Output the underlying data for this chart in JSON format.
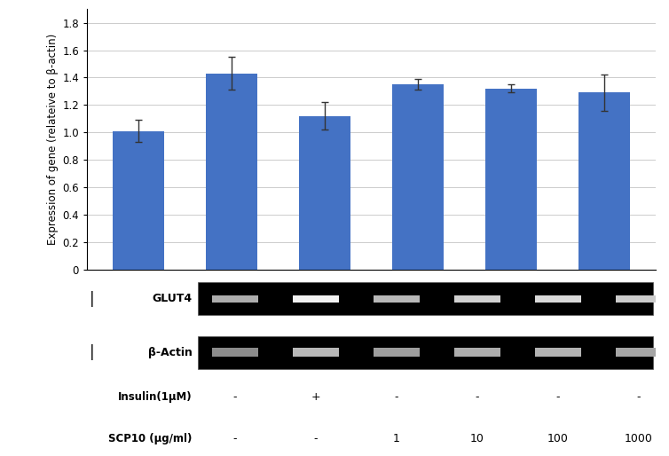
{
  "bar_values": [
    1.01,
    1.43,
    1.12,
    1.35,
    1.32,
    1.29
  ],
  "bar_errors": [
    0.08,
    0.12,
    0.1,
    0.04,
    0.03,
    0.13
  ],
  "bar_color": "#4472C4",
  "bar_width": 0.55,
  "ylim": [
    0,
    1.9
  ],
  "yticks": [
    0,
    0.2,
    0.4,
    0.6,
    0.8,
    1.0,
    1.2,
    1.4,
    1.6,
    1.8
  ],
  "ylabel": "Expression of gene (relateive to β-actin)",
  "xlabel_rows": [
    [
      "Insulin(1μM)",
      "-",
      "+",
      "-",
      "-",
      "-",
      "-"
    ],
    [
      "SCP10 (μg/ml)",
      "-",
      "-",
      "1",
      "10",
      "100",
      "1000"
    ]
  ],
  "gel_label1": "GLUT4",
  "gel_label2": "β-Actin",
  "n_bars": 6,
  "background_color": "#ffffff",
  "error_capsize": 3,
  "error_color": "#333333",
  "grid_color": "#cccccc",
  "bar_edge_color": "none",
  "glut4_intensities": [
    0.68,
    0.95,
    0.72,
    0.82,
    0.85,
    0.8
  ],
  "actin_intensities": [
    0.55,
    0.72,
    0.62,
    0.68,
    0.7,
    0.65
  ]
}
